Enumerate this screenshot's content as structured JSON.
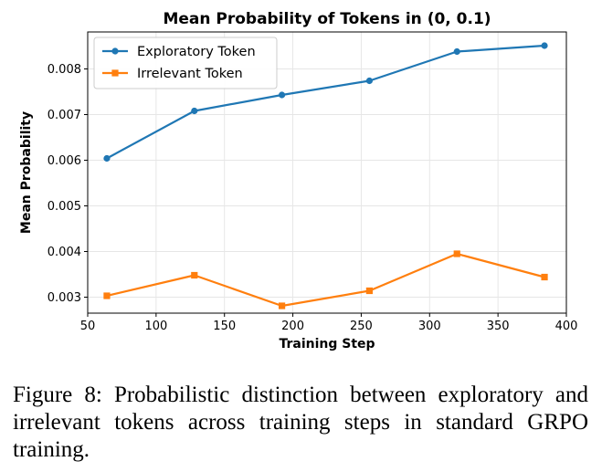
{
  "chart_data": {
    "type": "line",
    "title": "Mean Probability of Tokens in (0, 0.1)",
    "xlabel": "Training Step",
    "ylabel": "Mean Probability",
    "xlim": [
      50,
      400
    ],
    "ylim": [
      0.00265,
      0.00881
    ],
    "xticks": [
      50,
      100,
      150,
      200,
      250,
      300,
      350,
      400
    ],
    "xtick_labels": [
      "50",
      "100",
      "150",
      "200",
      "250",
      "300",
      "350",
      "400"
    ],
    "yticks": [
      0.003,
      0.004,
      0.005,
      0.006,
      0.007,
      0.008
    ],
    "ytick_labels": [
      "0.003",
      "0.004",
      "0.005",
      "0.006",
      "0.007",
      "0.008"
    ],
    "grid": true,
    "legend": "top-left",
    "x": [
      64,
      128,
      192,
      256,
      320,
      384
    ],
    "series": [
      {
        "name": "Exploratory Token",
        "color": "#1f77b4",
        "marker": "circle",
        "values": [
          0.00604,
          0.00708,
          0.00743,
          0.00774,
          0.00838,
          0.00851
        ]
      },
      {
        "name": "Irrelevant Token",
        "color": "#ff7f0e",
        "marker": "square",
        "values": [
          0.00303,
          0.00348,
          0.00281,
          0.00314,
          0.00395,
          0.00344
        ]
      }
    ]
  },
  "caption": "Figure 8: Probabilistic distinction between exploratory and irrelevant tokens across training steps in standard GRPO training."
}
